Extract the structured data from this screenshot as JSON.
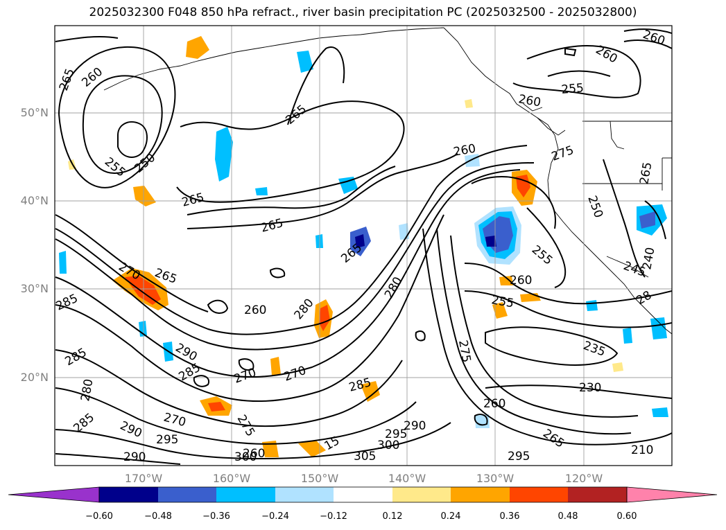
{
  "title": "2025032300 F048 850 hPa refract., river basin precipitation PC (2025032500 - 2025032800)",
  "lat_labels": [
    "50°N",
    "40°N",
    "30°N",
    "20°N"
  ],
  "lon_labels": [
    "170°W",
    "160°W",
    "150°W",
    "140°W",
    "130°W",
    "120°W"
  ],
  "colorbar": {
    "colors": [
      "#9932CC",
      "#00008B",
      "#3A5FCD",
      "#00BFFF",
      "#B0E2FF",
      "#FFFFFF",
      "#FFE98A",
      "#FFA500",
      "#FF4500",
      "#B22222",
      "#FF82AB"
    ],
    "ticks": [
      "−0.60",
      "−0.48",
      "−0.36",
      "−0.24",
      "−0.12",
      "0.12",
      "0.24",
      "0.36",
      "0.48",
      "0.60"
    ]
  },
  "contour_labels": [
    "260",
    "265",
    "260",
    "255",
    "250",
    "265",
    "265",
    "265",
    "260",
    "270",
    "265",
    "285",
    "260",
    "280",
    "280",
    "285",
    "290",
    "285",
    "280",
    "270",
    "285",
    "285",
    "290",
    "295",
    "270",
    "290",
    "300",
    "295",
    "305",
    "300",
    "260",
    "255",
    "260",
    "275",
    "250",
    "255",
    "260",
    "255",
    "265",
    "235",
    "230",
    "260",
    "295",
    "265",
    "240",
    "245",
    "270",
    "275",
    "28",
    "290",
    "260",
    "265",
    "275",
    "15",
    "210"
  ]
}
